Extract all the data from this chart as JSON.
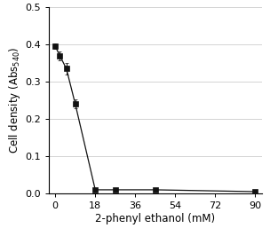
{
  "x": [
    0,
    2,
    5,
    9,
    18,
    27,
    45,
    90
  ],
  "y": [
    0.395,
    0.37,
    0.335,
    0.24,
    0.01,
    0.01,
    0.01,
    0.005
  ],
  "yerr": [
    0.008,
    0.012,
    0.015,
    0.012,
    0.004,
    0.003,
    0.003,
    0.002
  ],
  "xlabel": "2-phenyl ethanol (mM)",
  "xlim": [
    -3,
    93
  ],
  "ylim": [
    0,
    0.5
  ],
  "xticks": [
    0,
    18,
    36,
    54,
    72,
    90
  ],
  "yticks": [
    0,
    0.1,
    0.2,
    0.3,
    0.4,
    0.5
  ],
  "marker_color": "#111111",
  "marker_size": 4.5,
  "line_color": "#555555",
  "line_width": 0.9,
  "grid_color": "#cccccc",
  "background_color": "#ffffff",
  "label_fontsize": 8.5,
  "tick_fontsize": 8
}
